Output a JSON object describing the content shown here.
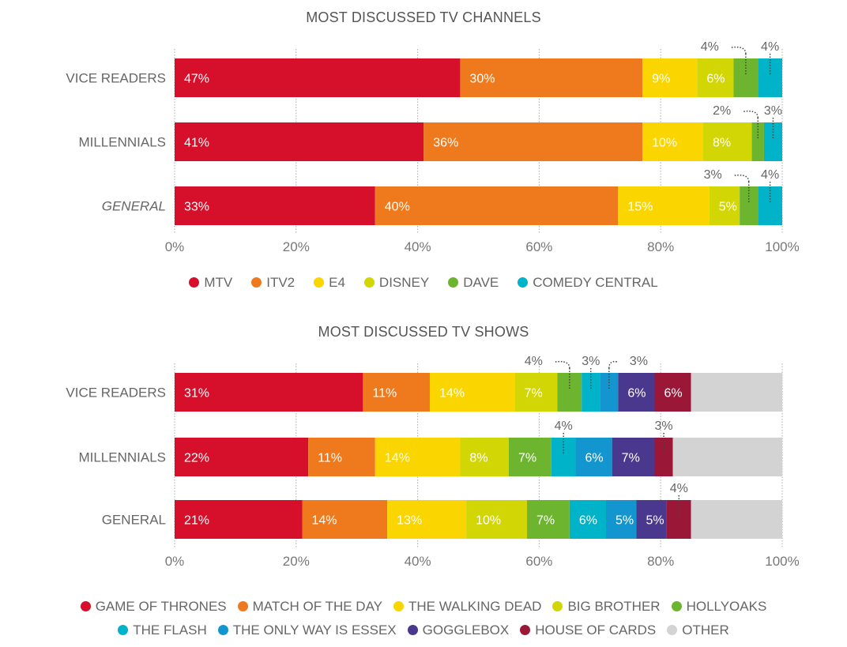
{
  "chart_data": [
    {
      "type": "bar",
      "orientation": "horizontal",
      "stacked": true,
      "title": "MOST DISCUSSED TV CHANNELS",
      "categories": [
        "VICE READERS",
        "MILLENNIALS",
        "GENERAL"
      ],
      "category_italic": [
        false,
        false,
        true
      ],
      "xlim": [
        0,
        100
      ],
      "xticks": [
        "0%",
        "20%",
        "40%",
        "60%",
        "80%",
        "100%"
      ],
      "grid": true,
      "legend_position": "bottom",
      "series": [
        {
          "name": "MTV",
          "color": "#d6102a",
          "values": [
            47,
            41,
            33
          ],
          "labels": [
            "47%",
            "41%",
            "33%"
          ]
        },
        {
          "name": "ITV2",
          "color": "#ef7a1e",
          "values": [
            30,
            36,
            40
          ],
          "labels": [
            "30%",
            "36%",
            "40%"
          ]
        },
        {
          "name": "E4",
          "color": "#fbd500",
          "values": [
            9,
            10,
            15
          ],
          "labels": [
            "9%",
            "10%",
            "15%"
          ]
        },
        {
          "name": "DISNEY",
          "color": "#d1d604",
          "values": [
            6,
            8,
            5
          ],
          "labels": [
            "6%",
            "8%",
            "5%"
          ]
        },
        {
          "name": "DAVE",
          "color": "#6db52f",
          "values": [
            4,
            2,
            3
          ],
          "labels": [
            "4%",
            "2%",
            "3%"
          ],
          "callout": true
        },
        {
          "name": "COMEDY CENTRAL",
          "color": "#00b3c8",
          "values": [
            4,
            3,
            4
          ],
          "labels": [
            "4%",
            "3%",
            "4%"
          ],
          "callout": true
        }
      ]
    },
    {
      "type": "bar",
      "orientation": "horizontal",
      "stacked": true,
      "title": "MOST DISCUSSED TV SHOWS",
      "categories": [
        "VICE READERS",
        "MILLENNIALS",
        "GENERAL"
      ],
      "category_italic": [
        false,
        false,
        false
      ],
      "xlim": [
        0,
        100
      ],
      "xticks": [
        "0%",
        "20%",
        "40%",
        "60%",
        "80%",
        "100%"
      ],
      "grid": true,
      "legend_position": "bottom",
      "series": [
        {
          "name": "GAME OF THRONES",
          "color": "#d6102a",
          "values": [
            31,
            22,
            21
          ],
          "labels": [
            "31%",
            "22%",
            "21%"
          ]
        },
        {
          "name": "MATCH OF THE DAY",
          "color": "#ef7a1e",
          "values": [
            11,
            11,
            14
          ],
          "labels": [
            "11%",
            "11%",
            "14%"
          ]
        },
        {
          "name": "THE WALKING DEAD",
          "color": "#fbd500",
          "values": [
            14,
            14,
            13
          ],
          "labels": [
            "14%",
            "14%",
            "13%"
          ]
        },
        {
          "name": "BIG BROTHER",
          "color": "#d1d604",
          "values": [
            7,
            8,
            10
          ],
          "labels": [
            "7%",
            "8%",
            "10%"
          ]
        },
        {
          "name": "HOLLYOAKS",
          "color": "#6db52f",
          "values": [
            4,
            7,
            7
          ],
          "labels": [
            "4%",
            "7%",
            "7%"
          ],
          "callout_rows": [
            0
          ]
        },
        {
          "name": "THE FLASH",
          "color": "#00b3c8",
          "values": [
            3,
            4,
            6
          ],
          "labels": [
            "3%",
            "4%",
            "6%"
          ],
          "callout_rows": [
            0,
            1
          ]
        },
        {
          "name": "THE ONLY WAY IS ESSEX",
          "color": "#1395cf",
          "values": [
            3,
            6,
            5
          ],
          "labels": [
            "3%",
            "6%",
            "5%"
          ],
          "callout_rows": [
            0
          ]
        },
        {
          "name": "GOGGLEBOX",
          "color": "#4a378e",
          "values": [
            6,
            7,
            5
          ],
          "labels": [
            "6%",
            "7%",
            "5%"
          ]
        },
        {
          "name": "HOUSE OF CARDS",
          "color": "#9b1738",
          "values": [
            6,
            3,
            4
          ],
          "labels": [
            "6%",
            "3%",
            "4%"
          ],
          "callout_rows": [
            1,
            2
          ]
        },
        {
          "name": "OTHER",
          "color": "#d3d3d3",
          "values": [
            15,
            18,
            15
          ],
          "labels": [
            "",
            "",
            ""
          ]
        }
      ]
    }
  ]
}
